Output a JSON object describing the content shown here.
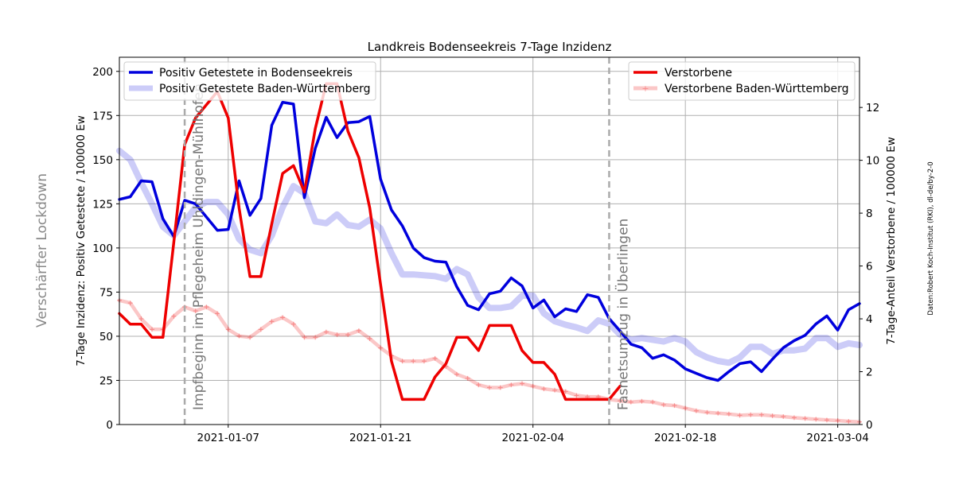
{
  "chart_data": {
    "type": "line",
    "title": "Landkreis Bodenseekreis 7-Tage Inzidenz",
    "x_tick_labels": [
      "2021-01-07",
      "2021-01-21",
      "2021-02-04",
      "2021-02-18",
      "2021-03-04"
    ],
    "xlim": [
      "2020-12-28",
      "2021-03-06"
    ],
    "grid": true,
    "y_left": {
      "label": "7-Tage Inzidenz: Positiv Getestete / 100000 Ew",
      "ylim": [
        0,
        208
      ],
      "ticks": [
        0,
        25,
        50,
        75,
        100,
        125,
        150,
        175,
        200
      ]
    },
    "y_right": {
      "label": "7-Tage-Anteil Verstorbene / 100000 Ew",
      "ylim": [
        0,
        13.9
      ],
      "ticks": [
        0,
        2,
        4,
        6,
        8,
        10,
        12
      ]
    },
    "side_text": "Verschärfter Lockdown",
    "credit": "Daten:Robert Koch-Institut (RKI), dl-de/by-2-0",
    "annotations": [
      {
        "text": "Impfbeginn im Pflegeheim Uhldingen-Mühlhofen",
        "date": "2021-01-03"
      },
      {
        "text": "Fasnetsumzug in Überlingen",
        "date": "2021-02-11"
      }
    ],
    "legend_left": {
      "position": "upper left",
      "entries": [
        "Positiv Getestete in Bodenseekreis",
        "Positiv Getestete Baden-Württemberg"
      ]
    },
    "legend_right": {
      "position": "upper right",
      "entries": [
        "Verstorbene",
        "Verstorbene Baden-Württemberg"
      ]
    },
    "start_date": "2020-12-28",
    "series": [
      {
        "name": "Positiv Getestete in Bodenseekreis",
        "axis": "left",
        "color": "#0000dd",
        "values": [
          127.5,
          129,
          138,
          137.5,
          116.5,
          106.5,
          127,
          125,
          117.5,
          110,
          110.5,
          138,
          118.5,
          128,
          169.5,
          182.5,
          181.5,
          128.5,
          156.5,
          174,
          162.5,
          171,
          171.5,
          174.5,
          139,
          121.5,
          112.5,
          100,
          94.5,
          92.5,
          92,
          78,
          67.5,
          65,
          74,
          75.5,
          83,
          78.5,
          66,
          70.5,
          61,
          65.5,
          64,
          73.5,
          72,
          60,
          53,
          45.5,
          43.5,
          37.5,
          39.5,
          36.5,
          31.5,
          29,
          26.5,
          25,
          30,
          34.5,
          35.5,
          30,
          37,
          43.5,
          47.5,
          50.5,
          57,
          61.5,
          53.5,
          65,
          68.5
        ]
      },
      {
        "name": "Positiv Getestete Baden-Württemberg",
        "axis": "left",
        "color": "#0000dd",
        "values": [
          155,
          150,
          137,
          125,
          112,
          107,
          115,
          123,
          126,
          126,
          119,
          105,
          99,
          97,
          107,
          123,
          135,
          131,
          115,
          114,
          119,
          113,
          112,
          116,
          111,
          97,
          85,
          85,
          84.5,
          84,
          82.5,
          88,
          85,
          72,
          66,
          66,
          67,
          73,
          73,
          63,
          58.5,
          56.5,
          55,
          53,
          59,
          57,
          51,
          48,
          49,
          48,
          47,
          49,
          47,
          41,
          38,
          36,
          35,
          38,
          44,
          44,
          40,
          42,
          42,
          43,
          49,
          49,
          44,
          46,
          45
        ]
      },
      {
        "name": "Verstorbene",
        "axis": "right",
        "color": "#ee0000",
        "values": [
          4.2,
          3.8,
          3.8,
          3.3,
          3.3,
          6.9,
          10.6,
          11.6,
          12.1,
          12.6,
          11.6,
          8.2,
          5.6,
          5.6,
          7.6,
          9.5,
          9.8,
          8.8,
          11.2,
          12.9,
          12.9,
          11.1,
          10.1,
          8.2,
          5.3,
          2.4,
          0.95,
          0.95,
          0.95,
          1.8,
          2.3,
          3.3,
          3.3,
          2.8,
          3.75,
          3.75,
          3.75,
          2.8,
          2.35,
          2.35,
          1.9,
          0.95,
          0.95,
          0.95,
          0.95,
          0.95,
          1.45
        ]
      },
      {
        "name": "Verstorbene Baden-Württemberg",
        "axis": "right",
        "color": "#ee0000",
        "values": [
          4.7,
          4.6,
          4.0,
          3.6,
          3.6,
          4.1,
          4.45,
          4.3,
          4.45,
          4.2,
          3.6,
          3.35,
          3.3,
          3.6,
          3.9,
          4.05,
          3.8,
          3.3,
          3.3,
          3.5,
          3.4,
          3.4,
          3.55,
          3.25,
          2.9,
          2.6,
          2.4,
          2.4,
          2.4,
          2.5,
          2.2,
          1.9,
          1.75,
          1.5,
          1.4,
          1.4,
          1.5,
          1.55,
          1.45,
          1.35,
          1.3,
          1.25,
          1.1,
          1.05,
          1.05,
          0.95,
          0.9,
          0.85,
          0.88,
          0.85,
          0.75,
          0.72,
          0.62,
          0.52,
          0.46,
          0.43,
          0.4,
          0.35,
          0.37,
          0.37,
          0.33,
          0.3,
          0.26,
          0.23,
          0.2,
          0.17,
          0.15,
          0.12,
          0.1
        ]
      }
    ]
  }
}
